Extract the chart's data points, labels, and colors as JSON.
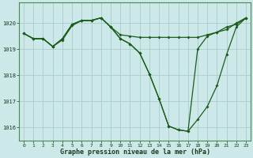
{
  "xlabel": "Graphe pression niveau de la mer (hPa)",
  "bg_color": "#cce8e8",
  "grid_color": "#aacccc",
  "line_color": "#1a5c1a",
  "xlim_min": -0.5,
  "xlim_max": 23.5,
  "ylim_min": 1015.5,
  "ylim_max": 1020.8,
  "yticks": [
    1016,
    1017,
    1018,
    1019,
    1020
  ],
  "xticks": [
    0,
    1,
    2,
    3,
    4,
    5,
    6,
    7,
    8,
    9,
    10,
    11,
    12,
    13,
    14,
    15,
    16,
    17,
    18,
    19,
    20,
    21,
    22,
    23
  ],
  "series1_x": [
    0,
    1,
    2,
    3,
    4,
    5,
    6,
    7,
    8,
    9,
    10,
    11,
    12,
    13,
    14,
    15,
    16,
    17,
    18,
    19,
    20,
    21,
    22,
    23
  ],
  "series1_y": [
    1019.6,
    1019.4,
    1019.4,
    1019.1,
    1019.35,
    1019.9,
    1020.1,
    1020.1,
    1020.2,
    1019.85,
    1019.55,
    1019.5,
    1019.45,
    1019.45,
    1019.45,
    1019.45,
    1019.45,
    1019.45,
    1019.45,
    1019.55,
    1019.65,
    1019.75,
    1020.0,
    1020.2
  ],
  "series2_x": [
    0,
    1,
    2,
    3,
    4,
    5,
    6,
    7,
    8,
    9,
    10,
    11,
    12,
    13,
    14,
    15,
    16,
    17,
    18,
    19,
    20,
    21,
    22,
    23
  ],
  "series2_y": [
    1019.6,
    1019.4,
    1019.4,
    1019.1,
    1019.4,
    1019.95,
    1020.1,
    1020.1,
    1020.2,
    1019.85,
    1019.4,
    1019.2,
    1018.85,
    1018.05,
    1017.1,
    1016.05,
    1015.9,
    1015.85,
    1016.3,
    1016.8,
    1017.6,
    1018.8,
    1019.85,
    1020.2
  ],
  "series3_x": [
    0,
    1,
    2,
    3,
    4,
    5,
    6,
    7,
    8,
    9,
    10,
    11,
    12,
    13,
    14,
    15,
    16,
    17,
    18,
    19,
    20,
    21,
    22,
    23
  ],
  "series3_y": [
    1019.6,
    1019.4,
    1019.4,
    1019.1,
    1019.4,
    1019.95,
    1020.1,
    1020.1,
    1020.2,
    1019.85,
    1019.4,
    1019.2,
    1018.85,
    1018.05,
    1017.1,
    1016.05,
    1015.9,
    1015.85,
    1019.0,
    1019.5,
    1019.65,
    1019.85,
    1019.95,
    1020.2
  ]
}
